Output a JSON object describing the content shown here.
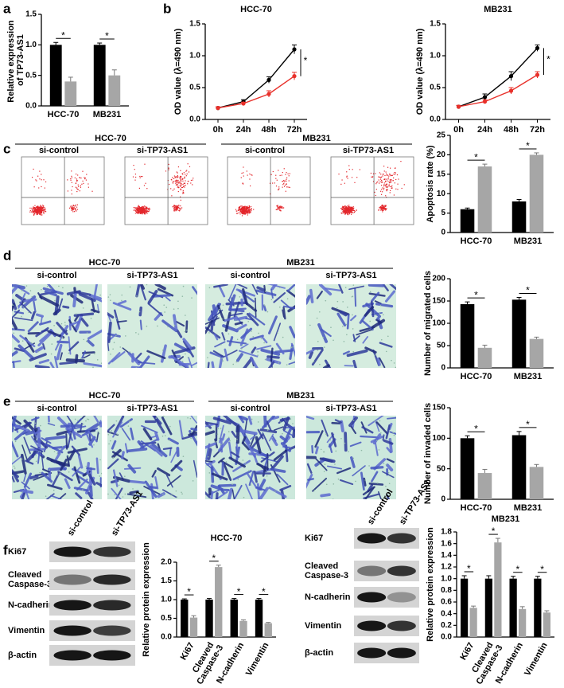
{
  "panel_labels": [
    "a",
    "b",
    "c",
    "d",
    "e",
    "f"
  ],
  "image_panels": [
    {
      "cell_lines": [
        "HCC-70",
        "MB231"
      ],
      "groups": [
        "si-control",
        "si-TP73-AS1",
        "si-control",
        "si-TP73-AS1"
      ]
    },
    {
      "cell_lines": [
        "HCC-70",
        "MB231"
      ],
      "groups": [
        "si-control",
        "si-TP73-AS1",
        "si-control",
        "si-TP73-AS1"
      ]
    },
    {
      "cell_lines": [
        "HCC-70",
        "MB231"
      ],
      "groups": [
        "si-control",
        "si-TP73-AS1",
        "si-control",
        "si-TP73-AS1"
      ]
    }
  ],
  "blots": [
    {
      "lanes": [
        "si-control",
        "si-TP73-AS1"
      ],
      "rows": [
        "Ki67",
        "Cleaved Caspase-3",
        "N-cadherin",
        "Vimentin",
        "β-actin"
      ]
    },
    {
      "lanes": [
        "si-control",
        "si-TP73-AS1"
      ],
      "rows": [
        "Ki67",
        "Cleaved Caspase-3",
        "N-cadherin",
        "Vimentin",
        "β-actin"
      ]
    }
  ],
  "chart_data": [
    {
      "type": "bar",
      "y_label": "Relative expression of TP73-AS1",
      "categories": [
        "HCC-70",
        "MB231"
      ],
      "series": [
        {
          "color": "#000000",
          "values": [
            1.0,
            1.0
          ],
          "errors": [
            0.04,
            0.03
          ]
        },
        {
          "color": "#a6a6a6",
          "values": [
            0.4,
            0.5
          ],
          "errors": [
            0.07,
            0.09
          ]
        }
      ],
      "significance": [
        "*",
        "*"
      ],
      "ylim": [
        0,
        1.5
      ],
      "yticks": [
        {
          "value": 0,
          "label": "0.0"
        },
        {
          "value": 0.5,
          "label": "0.5"
        },
        {
          "value": 1,
          "label": "1.0"
        },
        {
          "value": 1.5,
          "label": "1.5"
        }
      ]
    },
    {
      "type": "line",
      "title": "HCC-70",
      "y_label": "OD value (λ=490 nm)",
      "categories": [
        "0h",
        "24h",
        "48h",
        "72h"
      ],
      "series": [
        {
          "color": "#000000",
          "values": [
            0.18,
            0.28,
            0.62,
            1.1
          ],
          "errors": [
            0.02,
            0.03,
            0.05,
            0.07
          ]
        },
        {
          "color": "#e8302a",
          "values": [
            0.18,
            0.25,
            0.4,
            0.68
          ],
          "errors": [
            0.02,
            0.02,
            0.05,
            0.06
          ]
        }
      ],
      "significance": [
        "*"
      ],
      "ylim": [
        0,
        1.5
      ],
      "yticks": [
        {
          "value": 0,
          "label": "0.0"
        },
        {
          "value": 0.5,
          "label": "0.5"
        },
        {
          "value": 1,
          "label": "1.0"
        },
        {
          "value": 1.5,
          "label": "1.5"
        }
      ]
    },
    {
      "type": "line",
      "title": "MB231",
      "y_label": "OD value (λ=490 nm)",
      "categories": [
        "0h",
        "24h",
        "48h",
        "72h"
      ],
      "series": [
        {
          "color": "#000000",
          "values": [
            0.2,
            0.35,
            0.68,
            1.12
          ],
          "errors": [
            0.02,
            0.05,
            0.07,
            0.05
          ]
        },
        {
          "color": "#e8302a",
          "values": [
            0.2,
            0.28,
            0.45,
            0.7
          ],
          "errors": [
            0.02,
            0.03,
            0.05,
            0.05
          ]
        }
      ],
      "significance": [
        "*"
      ],
      "ylim": [
        0,
        1.5
      ],
      "yticks": [
        {
          "value": 0,
          "label": "0.0"
        },
        {
          "value": 0.5,
          "label": "0.5"
        },
        {
          "value": 1,
          "label": "1.0"
        },
        {
          "value": 1.5,
          "label": "1.5"
        }
      ]
    },
    {
      "type": "bar",
      "y_label": "Apoptosis rate (%)",
      "categories": [
        "HCC-70",
        "MB231"
      ],
      "series": [
        {
          "color": "#000000",
          "values": [
            6,
            8
          ],
          "errors": [
            0.3,
            0.5
          ]
        },
        {
          "color": "#a6a6a6",
          "values": [
            17,
            20
          ],
          "errors": [
            0.6,
            0.5
          ]
        }
      ],
      "significance": [
        "*",
        "*"
      ],
      "ylim": [
        0,
        25
      ],
      "yticks": [
        0,
        5,
        10,
        15,
        20,
        25
      ]
    },
    {
      "type": "bar",
      "y_label": "Number of migrated cells",
      "categories": [
        "HCC-70",
        "MB231"
      ],
      "series": [
        {
          "color": "#000000",
          "values": [
            143,
            153
          ],
          "errors": [
            5,
            5
          ]
        },
        {
          "color": "#a6a6a6",
          "values": [
            45,
            65
          ],
          "errors": [
            6,
            4
          ]
        }
      ],
      "significance": [
        "*",
        "*"
      ],
      "ylim": [
        0,
        200
      ],
      "yticks": [
        0,
        50,
        100,
        150,
        200
      ]
    },
    {
      "type": "bar",
      "y_label": "Number of invaded cells",
      "categories": [
        "HCC-70",
        "MB231"
      ],
      "series": [
        {
          "color": "#000000",
          "values": [
            100,
            105
          ],
          "errors": [
            4,
            6
          ]
        },
        {
          "color": "#a6a6a6",
          "values": [
            43,
            53
          ],
          "errors": [
            6,
            4
          ]
        }
      ],
      "significance": [
        "*",
        "*"
      ],
      "ylim": [
        0,
        150
      ],
      "yticks": [
        0,
        50,
        100,
        150
      ]
    },
    {
      "type": "bar",
      "title": "HCC-70",
      "y_label": "Relative protein expression",
      "categories": [
        "Ki67",
        "Cleaved Caspase-3",
        "N-cadherin",
        "Vimentin"
      ],
      "series": [
        {
          "color": "#000000",
          "values": [
            1,
            1,
            1,
            1
          ],
          "errors": [
            0.02,
            0.03,
            0.03,
            0.03
          ]
        },
        {
          "color": "#a6a6a6",
          "values": [
            0.52,
            1.87,
            0.43,
            0.37
          ],
          "errors": [
            0.05,
            0.05,
            0.03,
            0.02
          ]
        }
      ],
      "significance": [
        "*",
        "*",
        "*",
        "*"
      ],
      "ylim": [
        0,
        2
      ],
      "yticks": [
        {
          "value": 0,
          "label": "0.0"
        },
        {
          "value": 0.5,
          "label": "0.5"
        },
        {
          "value": 1,
          "label": "1.0"
        },
        {
          "value": 1.5,
          "label": "1.5"
        },
        {
          "value": 2,
          "label": "2.0"
        }
      ]
    },
    {
      "type": "bar",
      "title": "MB231",
      "y_label": "Relative protein expression",
      "categories": [
        "Ki67",
        "Cleaved Caspase-3",
        "N-cadherin",
        "Vimentin"
      ],
      "series": [
        {
          "color": "#000000",
          "values": [
            1,
            1,
            1,
            1
          ],
          "errors": [
            0.05,
            0.05,
            0.04,
            0.04
          ]
        },
        {
          "color": "#a6a6a6",
          "values": [
            0.5,
            1.62,
            0.48,
            0.42
          ],
          "errors": [
            0.03,
            0.07,
            0.04,
            0.03
          ]
        }
      ],
      "significance": [
        "*",
        "*",
        "*",
        "*"
      ],
      "ylim": [
        0,
        1.8
      ],
      "yticks": [
        {
          "value": 0,
          "label": "0.0"
        },
        {
          "value": 0.2,
          "label": "0.2"
        },
        {
          "value": 0.4,
          "label": "0.4"
        },
        {
          "value": 0.6,
          "label": "0.6"
        },
        {
          "value": 0.8,
          "label": "0.8"
        },
        {
          "value": 1,
          "label": "1.0"
        },
        {
          "value": 1.2,
          "label": "1.2"
        },
        {
          "value": 1.4,
          "label": "1.4"
        },
        {
          "value": 1.6,
          "label": "1.6"
        },
        {
          "value": 1.8,
          "label": "1.8"
        }
      ]
    }
  ]
}
